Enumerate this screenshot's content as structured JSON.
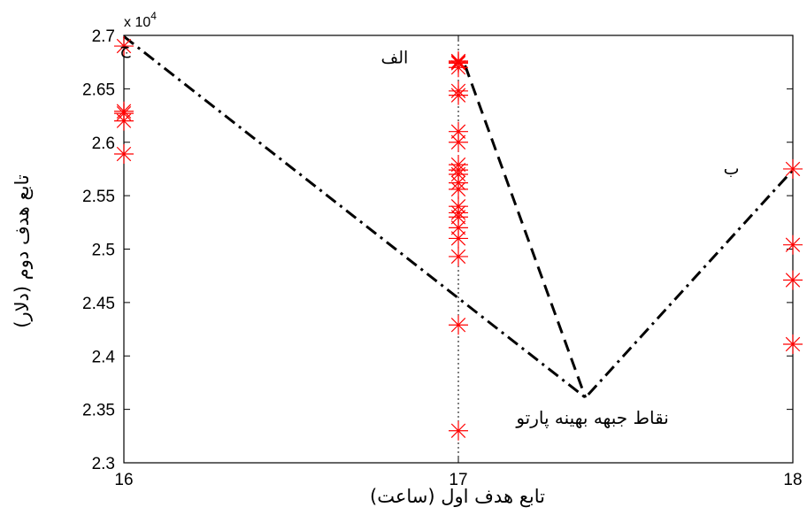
{
  "chart_data": {
    "type": "scatter",
    "xlabel": "تابع هدف اول (ساعت)",
    "ylabel": "تابع هدف دوم (دلار)",
    "xlim": [
      16,
      18
    ],
    "ylim": [
      23000,
      27000
    ],
    "x_ticks": [
      16,
      17,
      18
    ],
    "y_ticks": [
      23000,
      23500,
      24000,
      24500,
      25000,
      25500,
      26000,
      26500,
      27000
    ],
    "x_tick_labels": [
      "16",
      "17",
      "18"
    ],
    "y_tick_labels": [
      "2.3",
      "2.35",
      "2.4",
      "2.45",
      "2.5",
      "2.55",
      "2.6",
      "2.65",
      "2.7"
    ],
    "y_exponent_label": "x 10",
    "y_exponent_power": "4",
    "grid": false,
    "series": [
      {
        "name": "نقاط جبهه بهینه پارتو",
        "marker": "asterisk",
        "color": "#ff0000",
        "points": [
          [
            16,
            26900
          ],
          [
            16,
            26290
          ],
          [
            16,
            26270
          ],
          [
            16,
            26200
          ],
          [
            16,
            25890
          ],
          [
            17,
            26760
          ],
          [
            17,
            26750
          ],
          [
            17,
            26740
          ],
          [
            17,
            26700
          ],
          [
            17,
            26480
          ],
          [
            17,
            26440
          ],
          [
            17,
            26100
          ],
          [
            17,
            26000
          ],
          [
            17,
            25790
          ],
          [
            17,
            25740
          ],
          [
            17,
            25700
          ],
          [
            17,
            25620
          ],
          [
            17,
            25560
          ],
          [
            17,
            25400
          ],
          [
            17,
            25340
          ],
          [
            17,
            25300
          ],
          [
            17,
            25200
          ],
          [
            17,
            25100
          ],
          [
            17,
            24930
          ],
          [
            17,
            24290
          ],
          [
            17,
            23300
          ],
          [
            18,
            25750
          ],
          [
            18,
            25040
          ],
          [
            18,
            24710
          ],
          [
            18,
            24110
          ]
        ]
      }
    ],
    "lines": [
      {
        "style": "dash-dot",
        "color": "#000000",
        "points": [
          [
            16,
            26990
          ],
          [
            17.38,
            23610
          ],
          [
            18,
            25740
          ]
        ]
      },
      {
        "style": "dashed",
        "color": "#000000",
        "points": [
          [
            17.02,
            26720
          ],
          [
            17.38,
            23610
          ]
        ]
      }
    ],
    "annotations": [
      {
        "text": "ج",
        "x": 16.02,
        "y": 26830
      },
      {
        "text": "الف",
        "x": 16.85,
        "y": 26740
      },
      {
        "text": "ب",
        "x": 17.84,
        "y": 25700
      }
    ],
    "legend": {
      "text": "نقاط جبهه بهینه پارتو",
      "x": 17.1,
      "y": 23300
    }
  }
}
